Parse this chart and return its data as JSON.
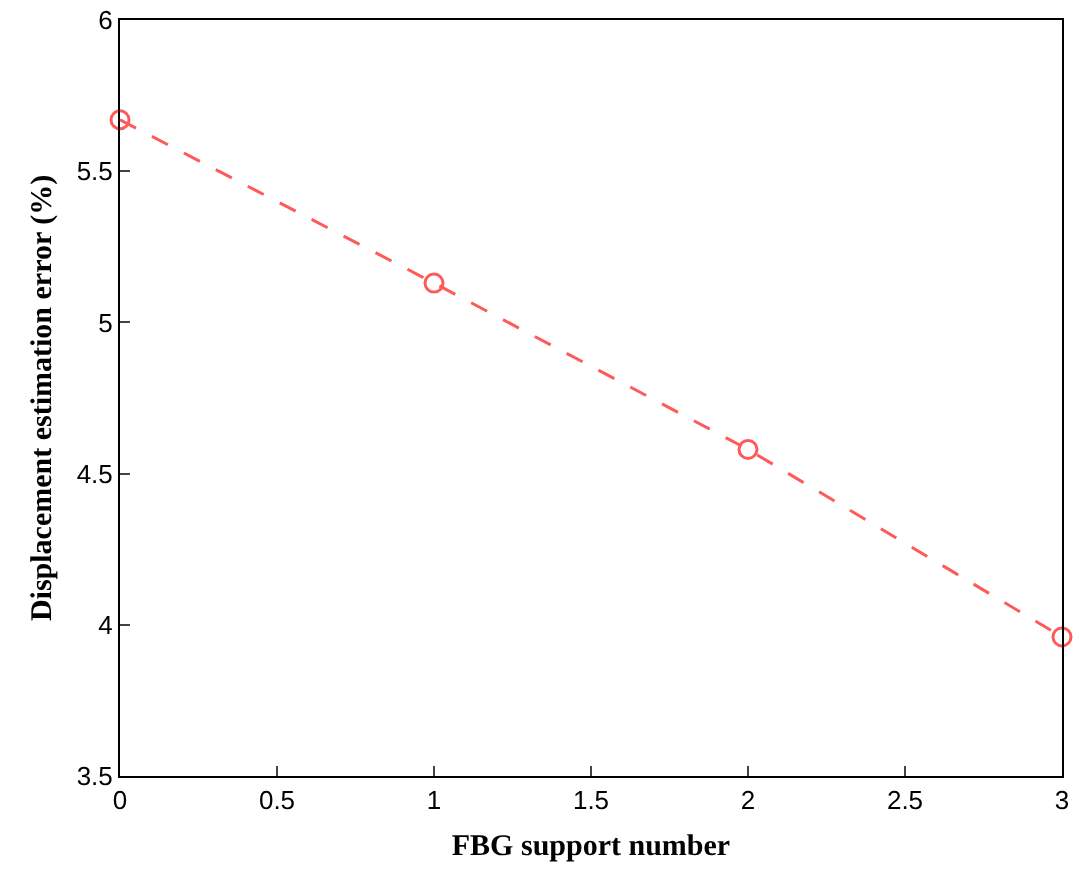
{
  "chart_data": {
    "type": "line",
    "xlabel": "FBG support number",
    "ylabel": "Displacement estimation error (%)",
    "x": [
      0,
      1,
      2,
      3
    ],
    "series": [
      {
        "color": "#ff5a5a",
        "values": [
          5.67,
          5.13,
          4.58,
          3.96
        ]
      }
    ],
    "xlim": [
      0,
      3
    ],
    "xticks": [
      0,
      0.5,
      1,
      1.5,
      2,
      2.5,
      3
    ],
    "ylim": [
      3.5,
      6
    ],
    "yticks": [
      3.5,
      4,
      4.5,
      5,
      5.5,
      6
    ],
    "grid": false,
    "marker": "circle",
    "line_style": "dashed"
  }
}
